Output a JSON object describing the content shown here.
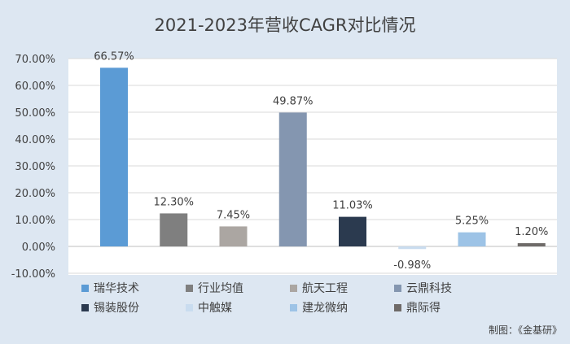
{
  "chart_data": {
    "type": "bar",
    "title": "2021-2023年营收CAGR对比情况",
    "xlabel": "",
    "ylabel": "",
    "ylim": [
      -10,
      70
    ],
    "yticks": [
      -10,
      0,
      10,
      20,
      30,
      40,
      50,
      60,
      70
    ],
    "ytick_labels": [
      "-10.00%",
      "0.00%",
      "10.00%",
      "20.00%",
      "30.00%",
      "40.00%",
      "50.00%",
      "60.00%",
      "70.00%"
    ],
    "grid": true,
    "legend_position": "bottom",
    "categories": [
      "瑞华技术",
      "行业均值",
      "航天工程",
      "云鼎科技",
      "锡装股份",
      "中触媒",
      "建龙微纳",
      "鼎际得"
    ],
    "values": [
      66.57,
      12.3,
      7.45,
      49.87,
      11.03,
      -0.98,
      5.25,
      1.2
    ],
    "value_labels": [
      "66.57%",
      "12.30%",
      "7.45%",
      "49.87%",
      "11.03%",
      "-0.98%",
      "5.25%",
      "1.20%"
    ],
    "colors": [
      "#5b9bd5",
      "#7f7f7f",
      "#aba6a2",
      "#8496b0",
      "#2b3a4f",
      "#c9dcef",
      "#9dc3e6",
      "#6e6a68"
    ]
  },
  "source_note": "制图：《金基研》",
  "colors": {
    "background": "#dde7f2",
    "plot_background": "#ffffff",
    "gridline": "#d9d9d9",
    "text": "#404040"
  }
}
